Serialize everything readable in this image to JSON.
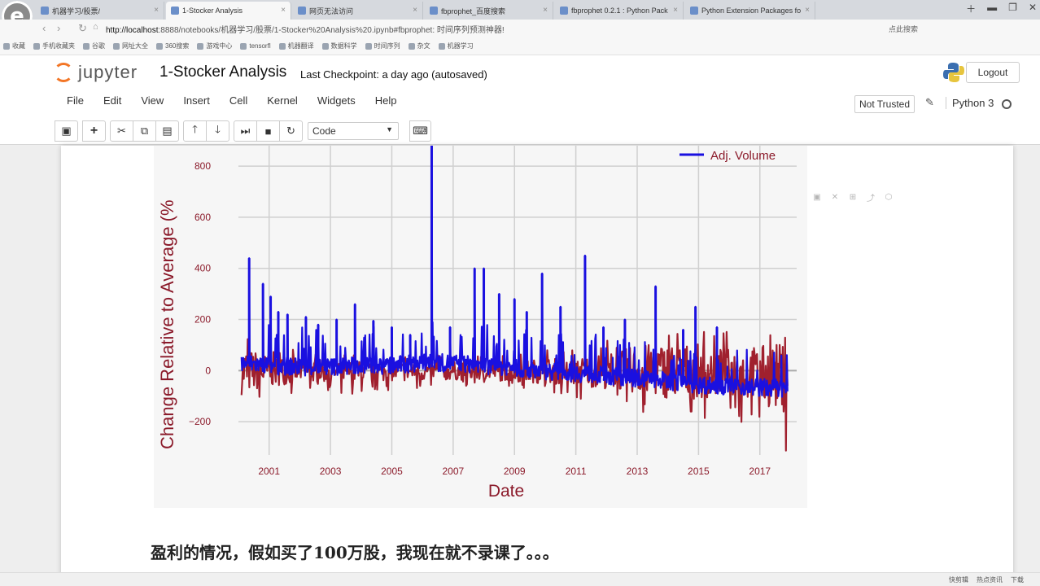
{
  "browser": {
    "logo": "e",
    "tabs": [
      {
        "title": "机器学习/股票/"
      },
      {
        "title": "1-Stocker Analysis"
      },
      {
        "title": "网页无法访问"
      },
      {
        "title": "fbprophet_百度搜索"
      },
      {
        "title": "fbprophet 0.2.1 : Python Pack"
      },
      {
        "title": "Python Extension Packages fo"
      }
    ],
    "url_host": "http://localhost",
    "url_path": ":8888/notebooks/机器学习/股票/1-Stocker%20Analysis%20.ipynb#fbprophet: 时间序列预测神器!",
    "addr_right": "点此搜索",
    "bookmarks": [
      "收藏",
      "手机收藏夹",
      "谷歌",
      "网址大全",
      "360搜索",
      "游戏中心",
      "tensorfl",
      "机器翻译",
      "数据科学",
      "时间序列",
      "杂文",
      "机器学习"
    ]
  },
  "jupyter": {
    "logo_text": "jupyter",
    "notebook_title": "1-Stocker Analysis",
    "checkpoint": "Last Checkpoint: a day ago (autosaved)",
    "logout": "Logout",
    "menu": [
      "File",
      "Edit",
      "View",
      "Insert",
      "Cell",
      "Kernel",
      "Widgets",
      "Help"
    ],
    "trust": "Not Trusted",
    "kernel": "Python 3",
    "cell_type": "Code",
    "toolbar_icons": [
      "save-icon",
      "plus-icon",
      "cut-icon",
      "copy-icon",
      "paste-icon",
      "arrow-up-icon",
      "arrow-down-icon",
      "run-icon",
      "stop-icon",
      "restart-icon",
      "keyboard-icon"
    ]
  },
  "chart_data": {
    "type": "line",
    "xlabel": "Date",
    "ylabel": "Change Relative to Average (%",
    "ylim": [
      -330,
      880
    ],
    "xlim": [
      2000.0,
      2018.2
    ],
    "grid": true,
    "legend_position": "top-right",
    "y_ticks": [
      -200,
      0,
      200,
      400,
      600,
      800
    ],
    "x_ticks": [
      "2001",
      "2003",
      "2005",
      "2007",
      "2009",
      "2011",
      "2013",
      "2015",
      "2017"
    ],
    "x_tick_values": [
      2001,
      2003,
      2005,
      2007,
      2009,
      2011,
      2013,
      2015,
      2017
    ],
    "colors": {
      "price_series": "#a0202e",
      "volume_series": "#1a10e0",
      "text": "#8b1a2a"
    },
    "series": [
      {
        "name": "",
        "color": "#a0202e",
        "band_lower": [
          -175,
          -120,
          -80,
          -90,
          -95,
          -80,
          -80,
          -70,
          -70,
          -80,
          -95,
          -110,
          -130,
          -160,
          -200,
          -210,
          -190,
          -340
        ],
        "band_upper": [
          170,
          110,
          80,
          70,
          60,
          55,
          60,
          60,
          60,
          70,
          80,
          90,
          120,
          190,
          195,
          180,
          150,
          160
        ],
        "band_years": [
          2000.1,
          2001,
          2002,
          2003,
          2004,
          2005,
          2006,
          2007,
          2008,
          2009,
          2010,
          2011,
          2012,
          2013,
          2014,
          2015,
          2016,
          2017.9
        ]
      },
      {
        "name": "Adj. Volume",
        "color": "#1a10e0",
        "spikes": [
          {
            "x": 2000.35,
            "y": 440
          },
          {
            "x": 2000.8,
            "y": 340
          },
          {
            "x": 2001.05,
            "y": 290
          },
          {
            "x": 2001.3,
            "y": 230
          },
          {
            "x": 2001.6,
            "y": 220
          },
          {
            "x": 2002.2,
            "y": 210
          },
          {
            "x": 2002.6,
            "y": 180
          },
          {
            "x": 2003.2,
            "y": 200
          },
          {
            "x": 2003.8,
            "y": 260
          },
          {
            "x": 2004.4,
            "y": 195
          },
          {
            "x": 2005.0,
            "y": 170
          },
          {
            "x": 2005.6,
            "y": 140
          },
          {
            "x": 2006.3,
            "y": 880
          },
          {
            "x": 2006.9,
            "y": 170
          },
          {
            "x": 2007.7,
            "y": 400
          },
          {
            "x": 2008.0,
            "y": 400
          },
          {
            "x": 2008.5,
            "y": 300
          },
          {
            "x": 2009.0,
            "y": 280
          },
          {
            "x": 2009.4,
            "y": 230
          },
          {
            "x": 2009.9,
            "y": 380
          },
          {
            "x": 2010.5,
            "y": 250
          },
          {
            "x": 2011.3,
            "y": 450
          },
          {
            "x": 2011.9,
            "y": 170
          },
          {
            "x": 2012.6,
            "y": 200
          },
          {
            "x": 2013.6,
            "y": 330
          },
          {
            "x": 2014.5,
            "y": 160
          },
          {
            "x": 2014.9,
            "y": 250
          },
          {
            "x": 2015.6,
            "y": 170
          }
        ],
        "baseline": [
          30,
          20,
          15,
          15,
          20,
          20,
          30,
          30,
          20,
          10,
          0,
          -10,
          -20,
          -30,
          -40,
          -55,
          -60,
          -70
        ]
      }
    ]
  },
  "subtitle": "盈利的情况，假如买了100万股，我现在就不录课了。。。",
  "status": {
    "items": [
      "快剪辑",
      "热点资讯",
      "下载"
    ]
  }
}
